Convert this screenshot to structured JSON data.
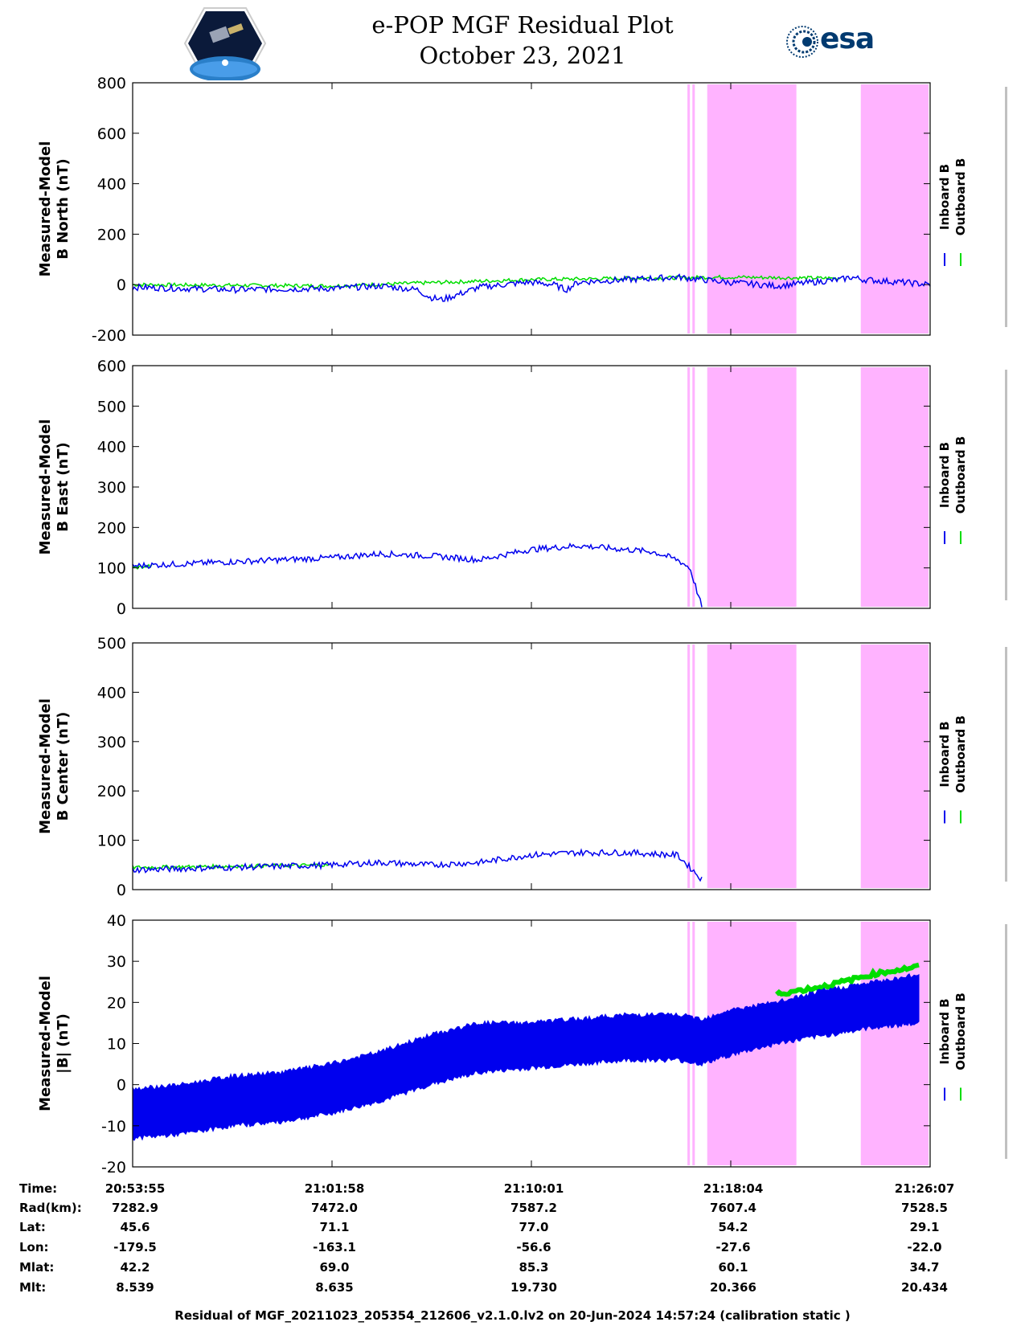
{
  "header": {
    "title_line1": "e-POP MGF Residual Plot",
    "title_line2": "October 23, 2021",
    "logo_left": "cassiope-mission-logo",
    "logo_right_text": "esa"
  },
  "colors": {
    "inboard": "#0000ee",
    "outboard": "#00dd00",
    "shade": "#ffb3ff",
    "gray_line": "#c0c0c0"
  },
  "legend": {
    "inboard": "Inboard B",
    "outboard": "Outboard B"
  },
  "chart_data": [
    {
      "type": "line",
      "ylabel": "Measured-Model\nB North (nT)",
      "ylim": [
        -200,
        800
      ],
      "yticks": [
        "800",
        "600",
        "400",
        "200",
        "0",
        "-200"
      ],
      "yvals": [
        800,
        600,
        400,
        200,
        0,
        -200
      ],
      "x_unit": "minutes since 20:53:55",
      "xlim": [
        0,
        32.2
      ],
      "series": [
        {
          "name": "Inboard B",
          "x": [
            0,
            4,
            8,
            10,
            11.5,
            12,
            12.5,
            14,
            16,
            17,
            17.5,
            18,
            20,
            22,
            22.5,
            24,
            26,
            27,
            28,
            28.6,
            29,
            29.5,
            31,
            32.2
          ],
          "y": [
            -10,
            -20,
            -15,
            -5,
            -20,
            -50,
            -60,
            -10,
            10,
            0,
            -20,
            10,
            20,
            30,
            25,
            10,
            -5,
            5,
            15,
            20,
            30,
            20,
            10,
            0
          ]
        },
        {
          "name": "Outboard B",
          "x": [
            0,
            8,
            16,
            24,
            28.6
          ],
          "y": [
            0,
            -5,
            20,
            30,
            25
          ]
        }
      ],
      "shaded_regions": [
        [
          22.4,
          22.5
        ],
        [
          22.6,
          22.7
        ],
        [
          23.2,
          26.8
        ],
        [
          29.4,
          33.2
        ]
      ]
    },
    {
      "type": "line",
      "ylabel": "Measured-Model\nB East (nT)",
      "ylim": [
        0,
        600
      ],
      "yticks": [
        "600",
        "500",
        "400",
        "300",
        "200",
        "100",
        "0"
      ],
      "yvals": [
        600,
        500,
        400,
        300,
        200,
        100,
        0
      ],
      "xlim": [
        0,
        32.2
      ],
      "series": [
        {
          "name": "Inboard B",
          "x": [
            0,
            4,
            8,
            10,
            12,
            14,
            16,
            18,
            20,
            21,
            22,
            22.5,
            23
          ],
          "y": [
            105,
            115,
            125,
            135,
            130,
            120,
            145,
            155,
            145,
            140,
            120,
            100,
            0
          ]
        },
        {
          "name": "Outboard B",
          "x": [
            0,
            0.8
          ],
          "y": [
            100,
            105
          ]
        }
      ],
      "shaded_regions": [
        [
          22.4,
          22.5
        ],
        [
          22.6,
          22.7
        ],
        [
          23.2,
          26.8
        ],
        [
          29.4,
          33.2
        ]
      ]
    },
    {
      "type": "line",
      "ylabel": "Measured-Model\nB Center (nT)",
      "ylim": [
        0,
        500
      ],
      "yticks": [
        "500",
        "400",
        "300",
        "200",
        "100",
        "0"
      ],
      "yvals": [
        500,
        400,
        300,
        200,
        100,
        0
      ],
      "xlim": [
        0,
        32.2
      ],
      "series": [
        {
          "name": "Inboard B",
          "x": [
            0,
            4,
            8,
            10,
            12,
            14,
            16,
            18,
            20,
            22,
            23
          ],
          "y": [
            40,
            45,
            50,
            55,
            50,
            55,
            70,
            75,
            75,
            70,
            20
          ]
        },
        {
          "name": "Outboard B",
          "x": [
            0,
            8
          ],
          "y": [
            45,
            50
          ]
        }
      ],
      "shaded_regions": [
        [
          22.4,
          22.5
        ],
        [
          22.6,
          22.7
        ],
        [
          23.2,
          26.8
        ],
        [
          29.4,
          33.2
        ]
      ]
    },
    {
      "type": "area",
      "ylabel": "Measured-Model\n|B| (nT)",
      "ylim": [
        -20,
        40
      ],
      "yticks": [
        "40",
        "30",
        "20",
        "10",
        "0",
        "-10",
        "-20"
      ],
      "yvals": [
        40,
        30,
        20,
        10,
        0,
        -10,
        -20
      ],
      "xlim": [
        0,
        32.2
      ],
      "series": [
        {
          "name": "Inboard B",
          "x": [
            0,
            2,
            4,
            6,
            8,
            10,
            12,
            14,
            16,
            18,
            20,
            22,
            23,
            24,
            26,
            28,
            30,
            32
          ],
          "upper": [
            -1,
            0,
            2,
            3,
            5,
            8,
            12,
            15,
            15,
            16,
            17,
            17,
            16,
            18,
            20,
            23,
            25,
            27
          ],
          "lower": [
            -13,
            -12,
            -10,
            -9,
            -7,
            -4,
            0,
            3,
            4,
            5,
            6,
            6,
            5,
            7,
            10,
            12,
            14,
            15
          ]
        },
        {
          "name": "Outboard B",
          "x": [
            26,
            28,
            30,
            32
          ],
          "y": [
            22,
            24,
            27,
            29
          ]
        }
      ],
      "shaded_regions": [
        [
          22.4,
          22.5
        ],
        [
          22.6,
          22.7
        ],
        [
          23.2,
          26.8
        ],
        [
          29.4,
          33.2
        ]
      ]
    }
  ],
  "ephemeris": {
    "labels": [
      "Time:",
      "Rad(km):",
      "Lat:",
      "Lon:",
      "Mlat:",
      "Mlt:"
    ],
    "columns": [
      [
        "20:53:55",
        "7282.9",
        "45.6",
        "-179.5",
        "42.2",
        "8.539"
      ],
      [
        "21:01:58",
        "7472.0",
        "71.1",
        "-163.1",
        "69.0",
        "8.635"
      ],
      [
        "21:10:01",
        "7587.2",
        "77.0",
        "-56.6",
        "85.3",
        "19.730"
      ],
      [
        "21:18:04",
        "7607.4",
        "54.2",
        "-27.6",
        "60.1",
        "20.366"
      ],
      [
        "21:26:07",
        "7528.5",
        "29.1",
        "-22.0",
        "34.7",
        "20.434"
      ]
    ]
  },
  "footer": "Residual of MGF_20211023_205354_212606_v2.1.0.lv2 on 20-Jun-2024 14:57:24 (calibration static )"
}
